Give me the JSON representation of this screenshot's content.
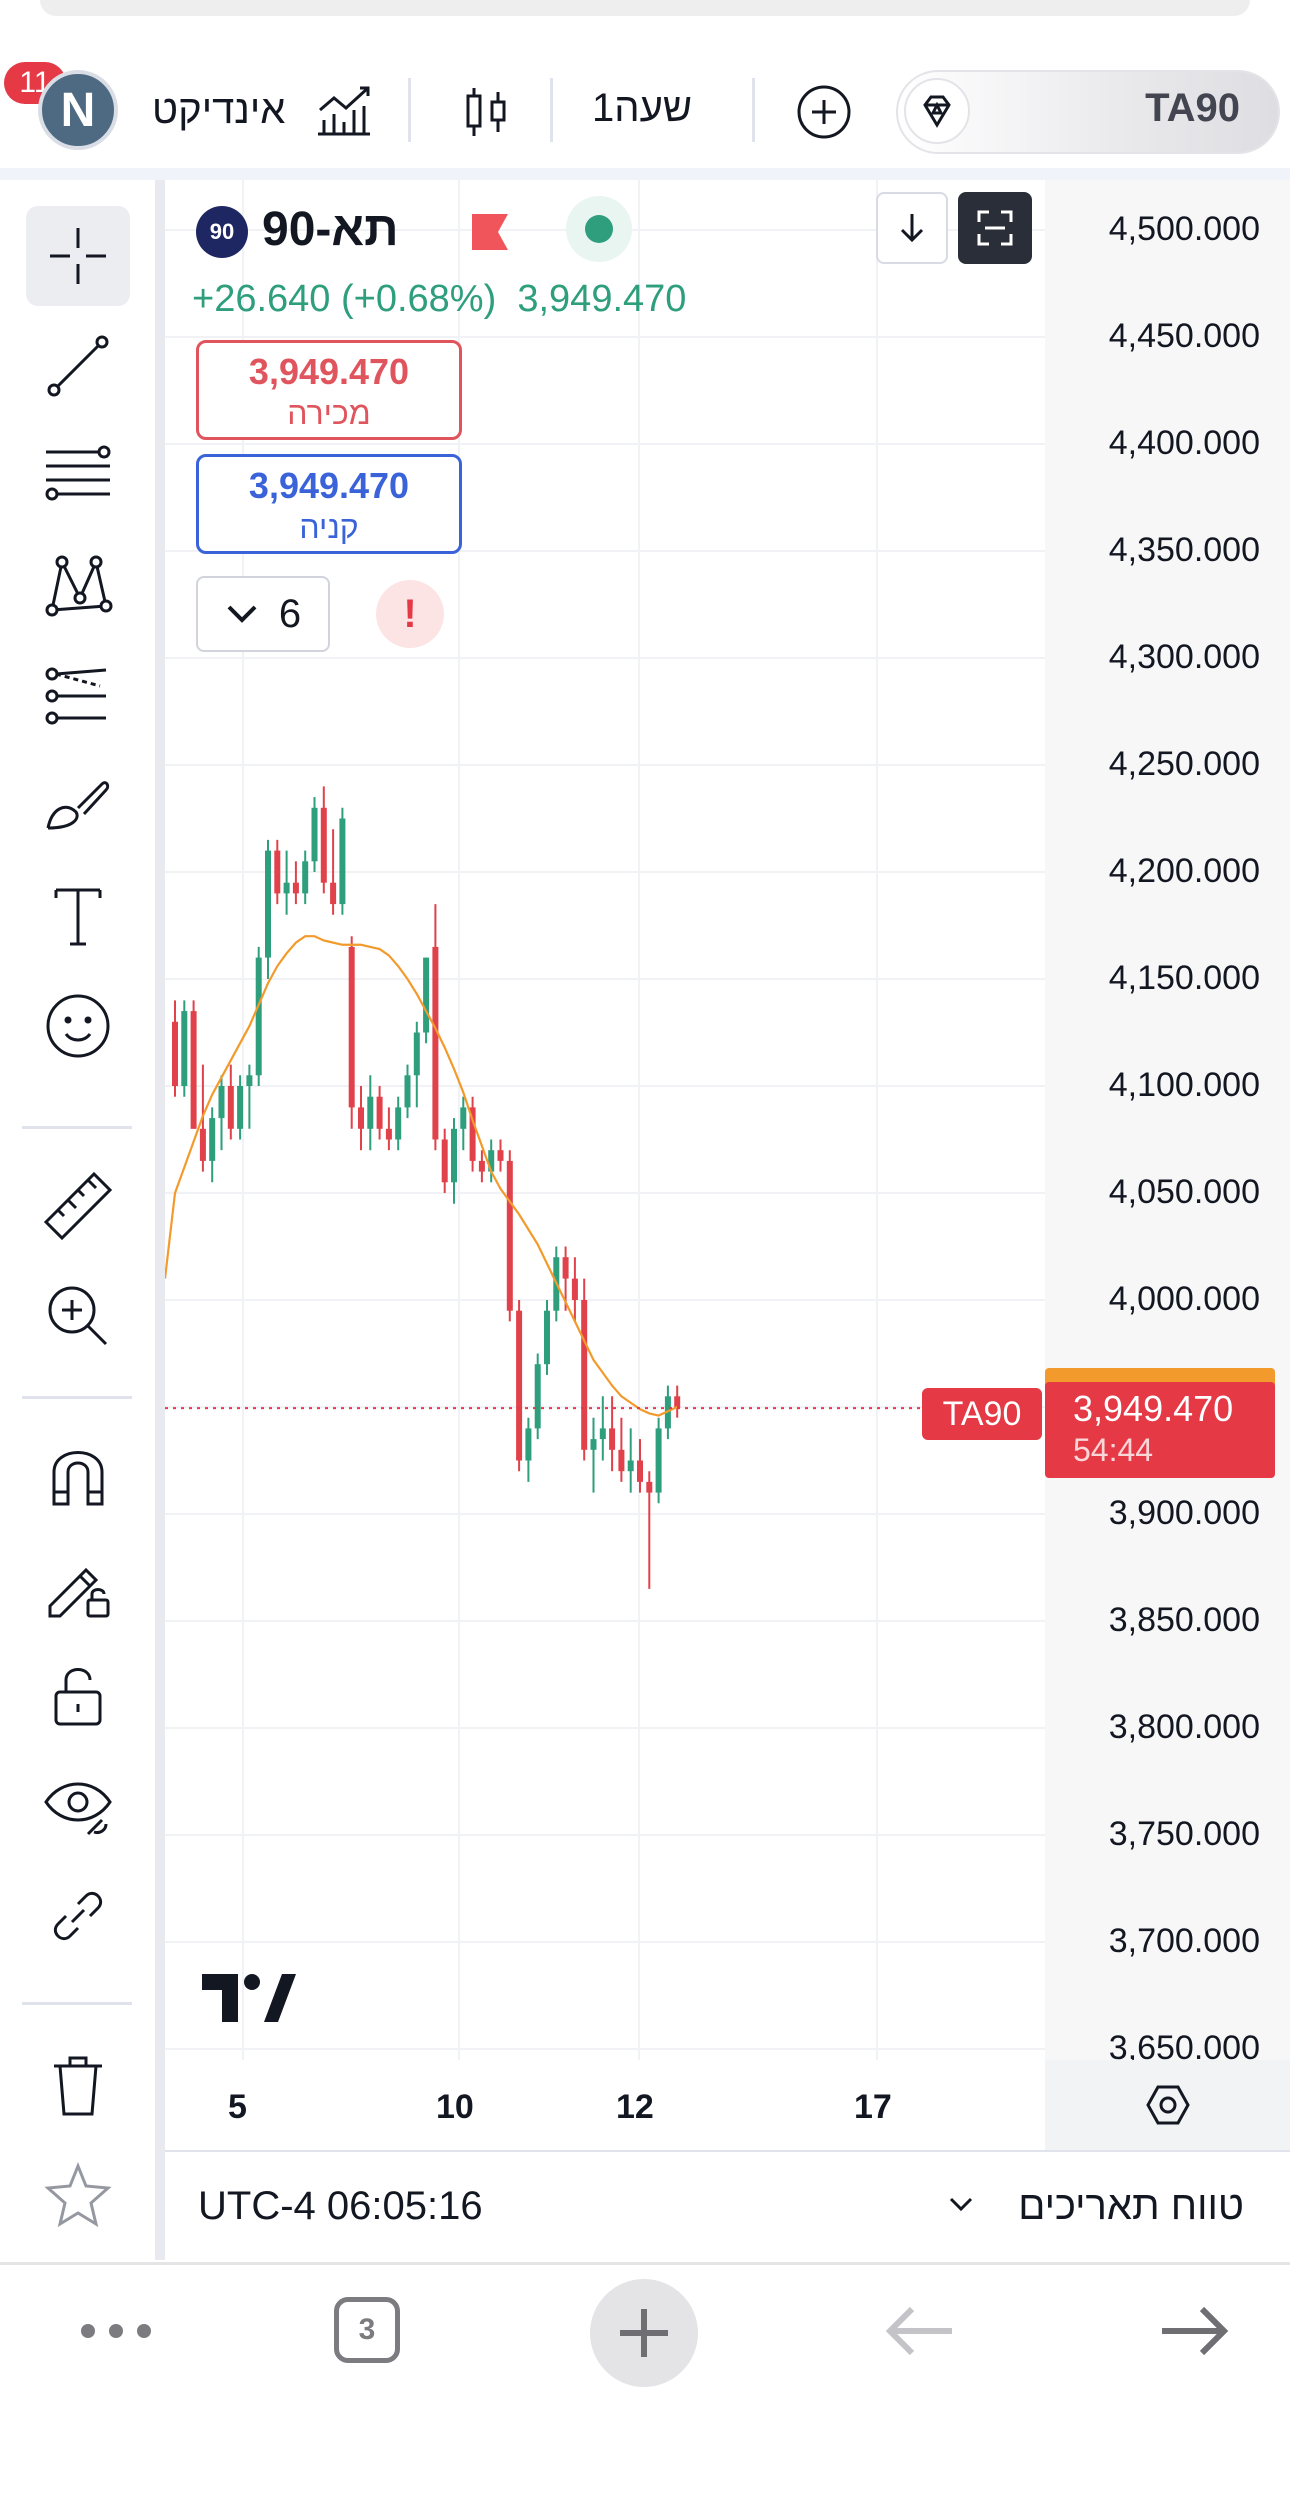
{
  "header": {
    "symbol": "TA90",
    "interval": "1שעה",
    "indicators_label": "אינדיקט",
    "avatar_letter": "N",
    "notifications": "11"
  },
  "legend": {
    "badge": "90",
    "name": "תא-90",
    "change": "+26.640 (+0.68%)",
    "last": "3,949.470",
    "sell": {
      "price": "3,949.470",
      "label": "מכירה"
    },
    "buy": {
      "price": "3,949.470",
      "label": "קניה"
    },
    "quantity": "6",
    "warning": "!"
  },
  "price_scale": {
    "ticks": [
      "4,500.000",
      "4,450.000",
      "4,400.000",
      "4,350.000",
      "4,300.000",
      "4,250.000",
      "4,200.000",
      "4,150.000",
      "4,100.000",
      "4,050.000",
      "4,000.000",
      "3,900.000",
      "3,850.000",
      "3,800.000",
      "3,750.000",
      "3,700.000",
      "3,650.000"
    ],
    "current_price": "3,949.470",
    "countdown": "54:44",
    "symbol_tag": "TA90"
  },
  "time_scale": {
    "labels": [
      "5",
      "10",
      "12",
      "17"
    ]
  },
  "footer": {
    "clock": "UTC-4 06:05:16",
    "range_label": "טווח תאריכים"
  },
  "browser": {
    "tabs_count": "3"
  },
  "toolbar": {
    "tools": [
      "crosshair-icon",
      "trend-line-icon",
      "fib-retracement-icon",
      "pattern-icon",
      "prediction-icon",
      "brush-icon",
      "text-icon",
      "emoji-icon",
      "ruler-icon",
      "zoom-in-icon",
      "magnet-icon",
      "lock-drawing-icon",
      "lock-icon",
      "eye-icon",
      "link-icon",
      "trash-icon",
      "star-icon"
    ]
  },
  "colors": {
    "up": "#2e9e7d",
    "down": "#e0414a",
    "ma": "#f39a2c",
    "accent": "#e53946"
  },
  "chart_data": {
    "type": "candlestick",
    "ylim": [
      3650,
      4500
    ],
    "x_tick_labels": [
      "5",
      "10",
      "12",
      "17"
    ],
    "ohlc": [
      [
        4130,
        4140,
        4095,
        4100
      ],
      [
        4100,
        4140,
        4095,
        4135
      ],
      [
        4135,
        4140,
        4080,
        4080
      ],
      [
        4080,
        4110,
        4060,
        4065
      ],
      [
        4065,
        4090,
        4055,
        4085
      ],
      [
        4085,
        4105,
        4070,
        4100
      ],
      [
        4100,
        4110,
        4075,
        4080
      ],
      [
        4080,
        4105,
        4075,
        4100
      ],
      [
        4100,
        4110,
        4080,
        4105
      ],
      [
        4105,
        4165,
        4100,
        4160
      ],
      [
        4160,
        4215,
        4150,
        4210
      ],
      [
        4210,
        4215,
        4185,
        4190
      ],
      [
        4190,
        4210,
        4180,
        4195
      ],
      [
        4195,
        4205,
        4185,
        4190
      ],
      [
        4190,
        4210,
        4185,
        4205
      ],
      [
        4205,
        4235,
        4200,
        4230
      ],
      [
        4230,
        4240,
        4190,
        4195
      ],
      [
        4195,
        4220,
        4180,
        4185
      ],
      [
        4185,
        4230,
        4180,
        4225
      ],
      [
        4165,
        4170,
        4080,
        4090
      ],
      [
        4090,
        4100,
        4070,
        4080
      ],
      [
        4080,
        4105,
        4070,
        4095
      ],
      [
        4095,
        4100,
        4075,
        4080
      ],
      [
        4080,
        4090,
        4070,
        4075
      ],
      [
        4075,
        4095,
        4070,
        4090
      ],
      [
        4090,
        4110,
        4085,
        4105
      ],
      [
        4105,
        4130,
        4090,
        4125
      ],
      [
        4125,
        4160,
        4120,
        4160
      ],
      [
        4165,
        4185,
        4070,
        4075
      ],
      [
        4075,
        4080,
        4050,
        4055
      ],
      [
        4055,
        4085,
        4045,
        4080
      ],
      [
        4080,
        4095,
        4070,
        4090
      ],
      [
        4090,
        4095,
        4060,
        4065
      ],
      [
        4065,
        4070,
        4055,
        4060
      ],
      [
        4060,
        4075,
        4055,
        4070
      ],
      [
        4070,
        4075,
        4060,
        4065
      ],
      [
        4065,
        4070,
        3990,
        3995
      ],
      [
        3995,
        4000,
        3920,
        3925
      ],
      [
        3925,
        3945,
        3915,
        3940
      ],
      [
        3940,
        3975,
        3935,
        3970
      ],
      [
        3970,
        4000,
        3965,
        3995
      ],
      [
        3995,
        4025,
        3990,
        4020
      ],
      [
        4020,
        4025,
        3995,
        4010
      ],
      [
        4010,
        4020,
        3990,
        4000
      ],
      [
        4000,
        4010,
        3925,
        3930
      ],
      [
        3930,
        3945,
        3910,
        3935
      ],
      [
        3935,
        3955,
        3925,
        3940
      ],
      [
        3940,
        3955,
        3920,
        3930
      ],
      [
        3930,
        3945,
        3915,
        3920
      ],
      [
        3920,
        3940,
        3910,
        3925
      ],
      [
        3925,
        3935,
        3910,
        3915
      ],
      [
        3915,
        3920,
        3865,
        3910
      ],
      [
        3910,
        3945,
        3905,
        3940
      ],
      [
        3940,
        3960,
        3935,
        3955
      ],
      [
        3955,
        3960,
        3945,
        3949.47
      ]
    ],
    "ma": [
      4050,
      4062,
      4074,
      4086,
      4096,
      4104,
      4112,
      4120,
      4128,
      4138,
      4148,
      4156,
      4162,
      4167,
      4170,
      4170,
      4168,
      4167,
      4166,
      4166,
      4166,
      4165,
      4164,
      4161,
      4156,
      4150,
      4143,
      4135,
      4127,
      4118,
      4108,
      4097,
      4084,
      4072,
      4060,
      4052,
      4046,
      4040,
      4033,
      4026,
      4017,
      4008,
      3999,
      3990,
      3981,
      3972,
      3966,
      3960,
      3955,
      3952,
      3949,
      3947,
      3946,
      3948,
      3950
    ]
  }
}
